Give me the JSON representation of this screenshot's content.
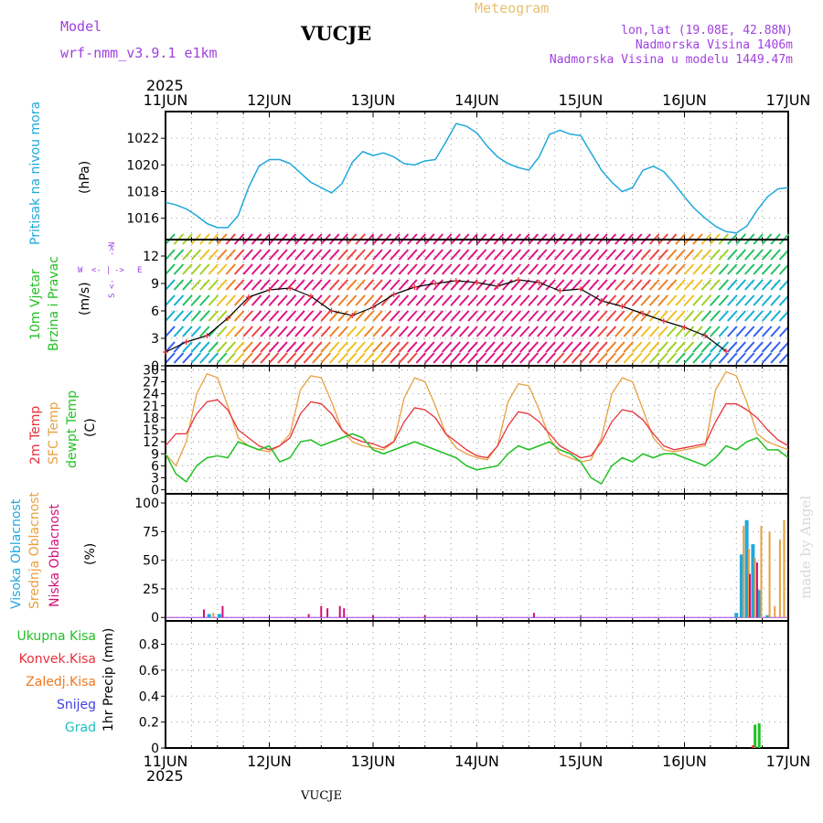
{
  "header": {
    "model_label": "Model",
    "model_name": "wrf-nmm_v3.9.1  e1km",
    "station": "VUCJE",
    "meteogram": "Meteogram",
    "lonlat": "lon,lat (19.08E, 42.88N)",
    "elevation": "Nadmorska Visina 1406m",
    "model_elevation": "Nadmorska Visina u modelu 1449.47m",
    "year_top": "2025",
    "year_bottom": "2025",
    "footer_station": "VUCJE",
    "watermark": "made by Angel"
  },
  "colors": {
    "pressure": "#1fa8dc",
    "temp2m": "#e8303a",
    "sfc": "#e8a040",
    "dew": "#22c024",
    "high_cloud": "#1fa8dc",
    "mid_cloud": "#e8a040",
    "low_cloud": "#d0107a",
    "rain_total": "#22c024",
    "rain_conv": "#e8303a",
    "freezing": "#f07820",
    "snow": "#4040e0",
    "hail": "#20c0c0",
    "label_purple": "#a040e0",
    "label_gold": "#e8c070"
  },
  "chart_data": [
    {
      "type": "line",
      "name": "pressure",
      "x_axis": {
        "start": "2025-06-11",
        "end": "2025-06-17",
        "ticks": [
          "11JUN",
          "12JUN",
          "13JUN",
          "14JUN",
          "15JUN",
          "16JUN",
          "17JUN"
        ]
      },
      "ylabel_left": "Pritisak na nivou mora",
      "unit": "(hPa)",
      "ylim": [
        1014.4,
        1024.0
      ],
      "yticks": [
        "1016",
        "1018",
        "1020",
        "1022"
      ],
      "grid": true,
      "series": [
        {
          "name": "Pritisak na nivou mora",
          "x": [
            0,
            0.1,
            0.2,
            0.3,
            0.4,
            0.5,
            0.6,
            0.7,
            0.8,
            0.9,
            1.0,
            1.1,
            1.2,
            1.3,
            1.4,
            1.5,
            1.6,
            1.7,
            1.8,
            1.9,
            2.0,
            2.1,
            2.2,
            2.3,
            2.4,
            2.5,
            2.6,
            2.7,
            2.8,
            2.9,
            3.0,
            3.1,
            3.2,
            3.3,
            3.4,
            3.5,
            3.6,
            3.7,
            3.8,
            3.9,
            4.0,
            4.1,
            4.2,
            4.3,
            4.4,
            4.5,
            4.6,
            4.7,
            4.8,
            4.9,
            5.0,
            5.1,
            5.2,
            5.3,
            5.4,
            5.5,
            5.6,
            5.7,
            5.8,
            5.9,
            6.0
          ],
          "values": [
            1017.2,
            1017.0,
            1016.7,
            1016.2,
            1015.6,
            1015.3,
            1015.3,
            1016.2,
            1018.3,
            1019.9,
            1020.4,
            1020.4,
            1020.1,
            1019.4,
            1018.7,
            1018.3,
            1017.9,
            1018.6,
            1020.2,
            1021.0,
            1020.7,
            1020.9,
            1020.6,
            1020.1,
            1020.0,
            1020.3,
            1020.4,
            1021.7,
            1023.1,
            1022.9,
            1022.4,
            1021.4,
            1020.6,
            1020.1,
            1019.8,
            1019.6,
            1020.6,
            1022.3,
            1022.6,
            1022.3,
            1022.2,
            1020.9,
            1019.6,
            1018.7,
            1018.0,
            1018.3,
            1019.6,
            1019.9,
            1019.5,
            1018.6,
            1017.6,
            1016.7,
            1016.0,
            1015.4,
            1015.0,
            1014.9,
            1015.4,
            1016.6,
            1017.6,
            1018.2,
            1018.3
          ]
        }
      ]
    },
    {
      "type": "line",
      "name": "wind",
      "x_axis": {
        "start": "2025-06-11",
        "end": "2025-06-17"
      },
      "ylabel_left": "10m Vjetar",
      "ylabel_left2": "Brzina i Pravac",
      "unit": "(m/s)",
      "compass": {
        "w": "W",
        "e": "E",
        "s": "S",
        "n": "N",
        "arrow_left": "<-",
        "arrow_right": "->",
        "bar": "|"
      },
      "ylim": [
        0,
        13.8
      ],
      "yticks": [
        "0",
        "3",
        "6",
        "9",
        "12"
      ],
      "grid": true,
      "series": [
        {
          "name": "wind speed",
          "x": [
            0,
            0.2,
            0.4,
            0.6,
            0.8,
            1.0,
            1.2,
            1.4,
            1.6,
            1.8,
            2.0,
            2.2,
            2.4,
            2.6,
            2.8,
            3.0,
            3.2,
            3.4,
            3.6,
            3.8,
            4.0,
            4.2,
            4.4,
            4.6,
            4.8,
            5.0,
            5.2,
            5.4
          ],
          "values": [
            1.5,
            2.6,
            3.3,
            5.2,
            7.5,
            8.3,
            8.5,
            7.6,
            6.0,
            5.5,
            6.4,
            7.8,
            8.6,
            9.0,
            9.3,
            9.1,
            8.7,
            9.4,
            9.1,
            8.2,
            8.4,
            7.1,
            6.5,
            5.7,
            4.9,
            4.2,
            3.3,
            1.6
          ]
        }
      ]
    },
    {
      "type": "line",
      "name": "temperature",
      "x_axis": {
        "start": "2025-06-11",
        "end": "2025-06-17"
      },
      "ylabels": [
        "2m Temp",
        "SFC Temp",
        "dewpt Temp"
      ],
      "unit": "(C)",
      "ylim": [
        -1,
        31
      ],
      "yticks": [
        "0",
        "3",
        "6",
        "9",
        "12",
        "15",
        "18",
        "21",
        "24",
        "27",
        "30"
      ],
      "grid": true,
      "series": [
        {
          "name": "2m Temp",
          "x": [
            0,
            0.1,
            0.2,
            0.3,
            0.4,
            0.5,
            0.6,
            0.7,
            0.8,
            0.9,
            1.0,
            1.1,
            1.2,
            1.3,
            1.4,
            1.5,
            1.6,
            1.7,
            1.8,
            1.9,
            2.0,
            2.1,
            2.2,
            2.3,
            2.4,
            2.5,
            2.6,
            2.7,
            2.8,
            2.9,
            3.0,
            3.1,
            3.2,
            3.3,
            3.4,
            3.5,
            3.6,
            3.7,
            3.8,
            3.9,
            4.0,
            4.1,
            4.2,
            4.3,
            4.4,
            4.5,
            4.6,
            4.7,
            4.8,
            4.9,
            5.0,
            5.1,
            5.2,
            5.3,
            5.4,
            5.5,
            5.6,
            5.7,
            5.8,
            5.9,
            6.0
          ],
          "values": [
            11,
            14,
            14,
            19,
            22,
            22.5,
            20,
            15,
            13,
            11,
            10,
            11,
            13,
            19,
            22,
            21.5,
            19,
            15,
            13,
            12,
            11.5,
            10.5,
            12,
            17,
            20.5,
            20,
            18,
            14,
            12,
            10,
            8.5,
            8,
            11,
            16,
            19.5,
            19,
            17,
            14,
            11,
            9.5,
            8,
            8.5,
            12,
            17,
            20,
            19.5,
            17.5,
            14,
            11,
            10,
            10.5,
            11,
            11.5,
            17,
            21.5,
            21.5,
            20,
            18,
            15,
            12.5,
            11
          ]
        },
        {
          "name": "SFC Temp",
          "x": [
            0,
            0.1,
            0.2,
            0.3,
            0.4,
            0.5,
            0.6,
            0.7,
            0.8,
            0.9,
            1.0,
            1.1,
            1.2,
            1.3,
            1.4,
            1.5,
            1.6,
            1.7,
            1.8,
            1.9,
            2.0,
            2.1,
            2.2,
            2.3,
            2.4,
            2.5,
            2.6,
            2.7,
            2.8,
            2.9,
            3.0,
            3.1,
            3.2,
            3.3,
            3.4,
            3.5,
            3.6,
            3.7,
            3.8,
            3.9,
            4.0,
            4.1,
            4.2,
            4.3,
            4.4,
            4.5,
            4.6,
            4.7,
            4.8,
            4.9,
            5.0,
            5.1,
            5.2,
            5.3,
            5.4,
            5.5,
            5.6,
            5.7,
            5.8,
            5.9,
            6.0
          ],
          "values": [
            9,
            6,
            12,
            24,
            29,
            28,
            21,
            13,
            11,
            10,
            9.5,
            11,
            14,
            25,
            28.5,
            28,
            22,
            15,
            12,
            11,
            10.5,
            10,
            12,
            23,
            28,
            27,
            21,
            14,
            10.5,
            9,
            8,
            7.5,
            11,
            22,
            26.5,
            26,
            20,
            13,
            9,
            8,
            7,
            7.5,
            13,
            24,
            28,
            27,
            20,
            13,
            10,
            9.5,
            10,
            10.5,
            11,
            25,
            29.5,
            28.5,
            22,
            14,
            12,
            11,
            10
          ]
        },
        {
          "name": "dewpt Temp",
          "x": [
            0,
            0.1,
            0.2,
            0.3,
            0.4,
            0.5,
            0.6,
            0.7,
            0.8,
            0.9,
            1.0,
            1.1,
            1.2,
            1.3,
            1.4,
            1.5,
            1.6,
            1.7,
            1.8,
            1.9,
            2.0,
            2.1,
            2.2,
            2.3,
            2.4,
            2.5,
            2.6,
            2.7,
            2.8,
            2.9,
            3.0,
            3.1,
            3.2,
            3.3,
            3.4,
            3.5,
            3.6,
            3.7,
            3.8,
            3.9,
            4.0,
            4.1,
            4.2,
            4.3,
            4.4,
            4.5,
            4.6,
            4.7,
            4.8,
            4.9,
            5.0,
            5.1,
            5.2,
            5.3,
            5.4,
            5.5,
            5.6,
            5.7,
            5.8,
            5.9,
            6.0
          ],
          "values": [
            9,
            4,
            2,
            6,
            8,
            8.5,
            8,
            12,
            11,
            10,
            11,
            7,
            8,
            12,
            12.5,
            11,
            12,
            13,
            14,
            13,
            10,
            9,
            10,
            11,
            12,
            11,
            10,
            9,
            8,
            6,
            5,
            5.5,
            6,
            9,
            11,
            10,
            11,
            12,
            10,
            9,
            7,
            3,
            1.5,
            6,
            8,
            7,
            9,
            8,
            9,
            9,
            8,
            7,
            6,
            8,
            11,
            10,
            12,
            13,
            10,
            10,
            8
          ]
        }
      ]
    },
    {
      "type": "bar",
      "name": "cloud",
      "x_axis": {
        "start": "2025-06-11",
        "end": "2025-06-17"
      },
      "ylabels": [
        "Visoka Oblacnost",
        "Srednja Oblacnost",
        "Niska Oblacnost"
      ],
      "unit": "(%)",
      "ylim": [
        -3,
        108
      ],
      "yticks": [
        "0",
        "25",
        "50",
        "75",
        "100"
      ],
      "grid": true,
      "series": [
        {
          "name": "Visoka Oblacnost",
          "x": [
            0.42,
            0.52,
            5.5,
            5.55,
            5.6,
            5.66,
            5.72,
            5.8
          ],
          "values": [
            3,
            3,
            4,
            55,
            85,
            64,
            24,
            2
          ]
        },
        {
          "name": "Srednja Oblacnost",
          "x": [
            0.46,
            0.55,
            2.5,
            5.57,
            5.62,
            5.68,
            5.74,
            5.82,
            5.87,
            5.92,
            5.96
          ],
          "values": [
            4,
            3,
            2,
            80,
            60,
            52,
            80,
            75,
            10,
            68,
            85
          ]
        },
        {
          "name": "Niska Oblacnost",
          "x": [
            0.37,
            0.55,
            1.38,
            1.5,
            1.56,
            1.68,
            1.72,
            2.0,
            2.5,
            3.55,
            5.63,
            5.7
          ],
          "values": [
            7,
            10,
            3,
            10,
            8,
            10,
            8,
            2,
            2,
            4,
            38,
            48
          ]
        }
      ]
    },
    {
      "type": "bar",
      "name": "precip",
      "x_axis": {
        "start": "2025-06-11",
        "end": "2025-06-17"
      },
      "ylabel": "1hr Precip (mm)",
      "legend": [
        "Ukupna Kisa",
        "Konvek.Kisa",
        "Zaledj.Kisa",
        "Snijeg",
        "Grad"
      ],
      "ylim": [
        0,
        0.98
      ],
      "yticks": [
        "0",
        "0.2",
        "0.4",
        "0.6",
        "0.8"
      ],
      "grid": true,
      "series": [
        {
          "name": "Ukupna Kisa",
          "x": [
            5.68,
            5.72
          ],
          "values": [
            0.18,
            0.19
          ]
        },
        {
          "name": "Konvek.Kisa",
          "x": [
            5.66
          ],
          "values": [
            0.02
          ]
        },
        {
          "name": "Zaledj.Kisa",
          "x": [],
          "values": []
        },
        {
          "name": "Snijeg",
          "x": [],
          "values": []
        },
        {
          "name": "Grad",
          "x": [],
          "values": []
        }
      ]
    }
  ]
}
